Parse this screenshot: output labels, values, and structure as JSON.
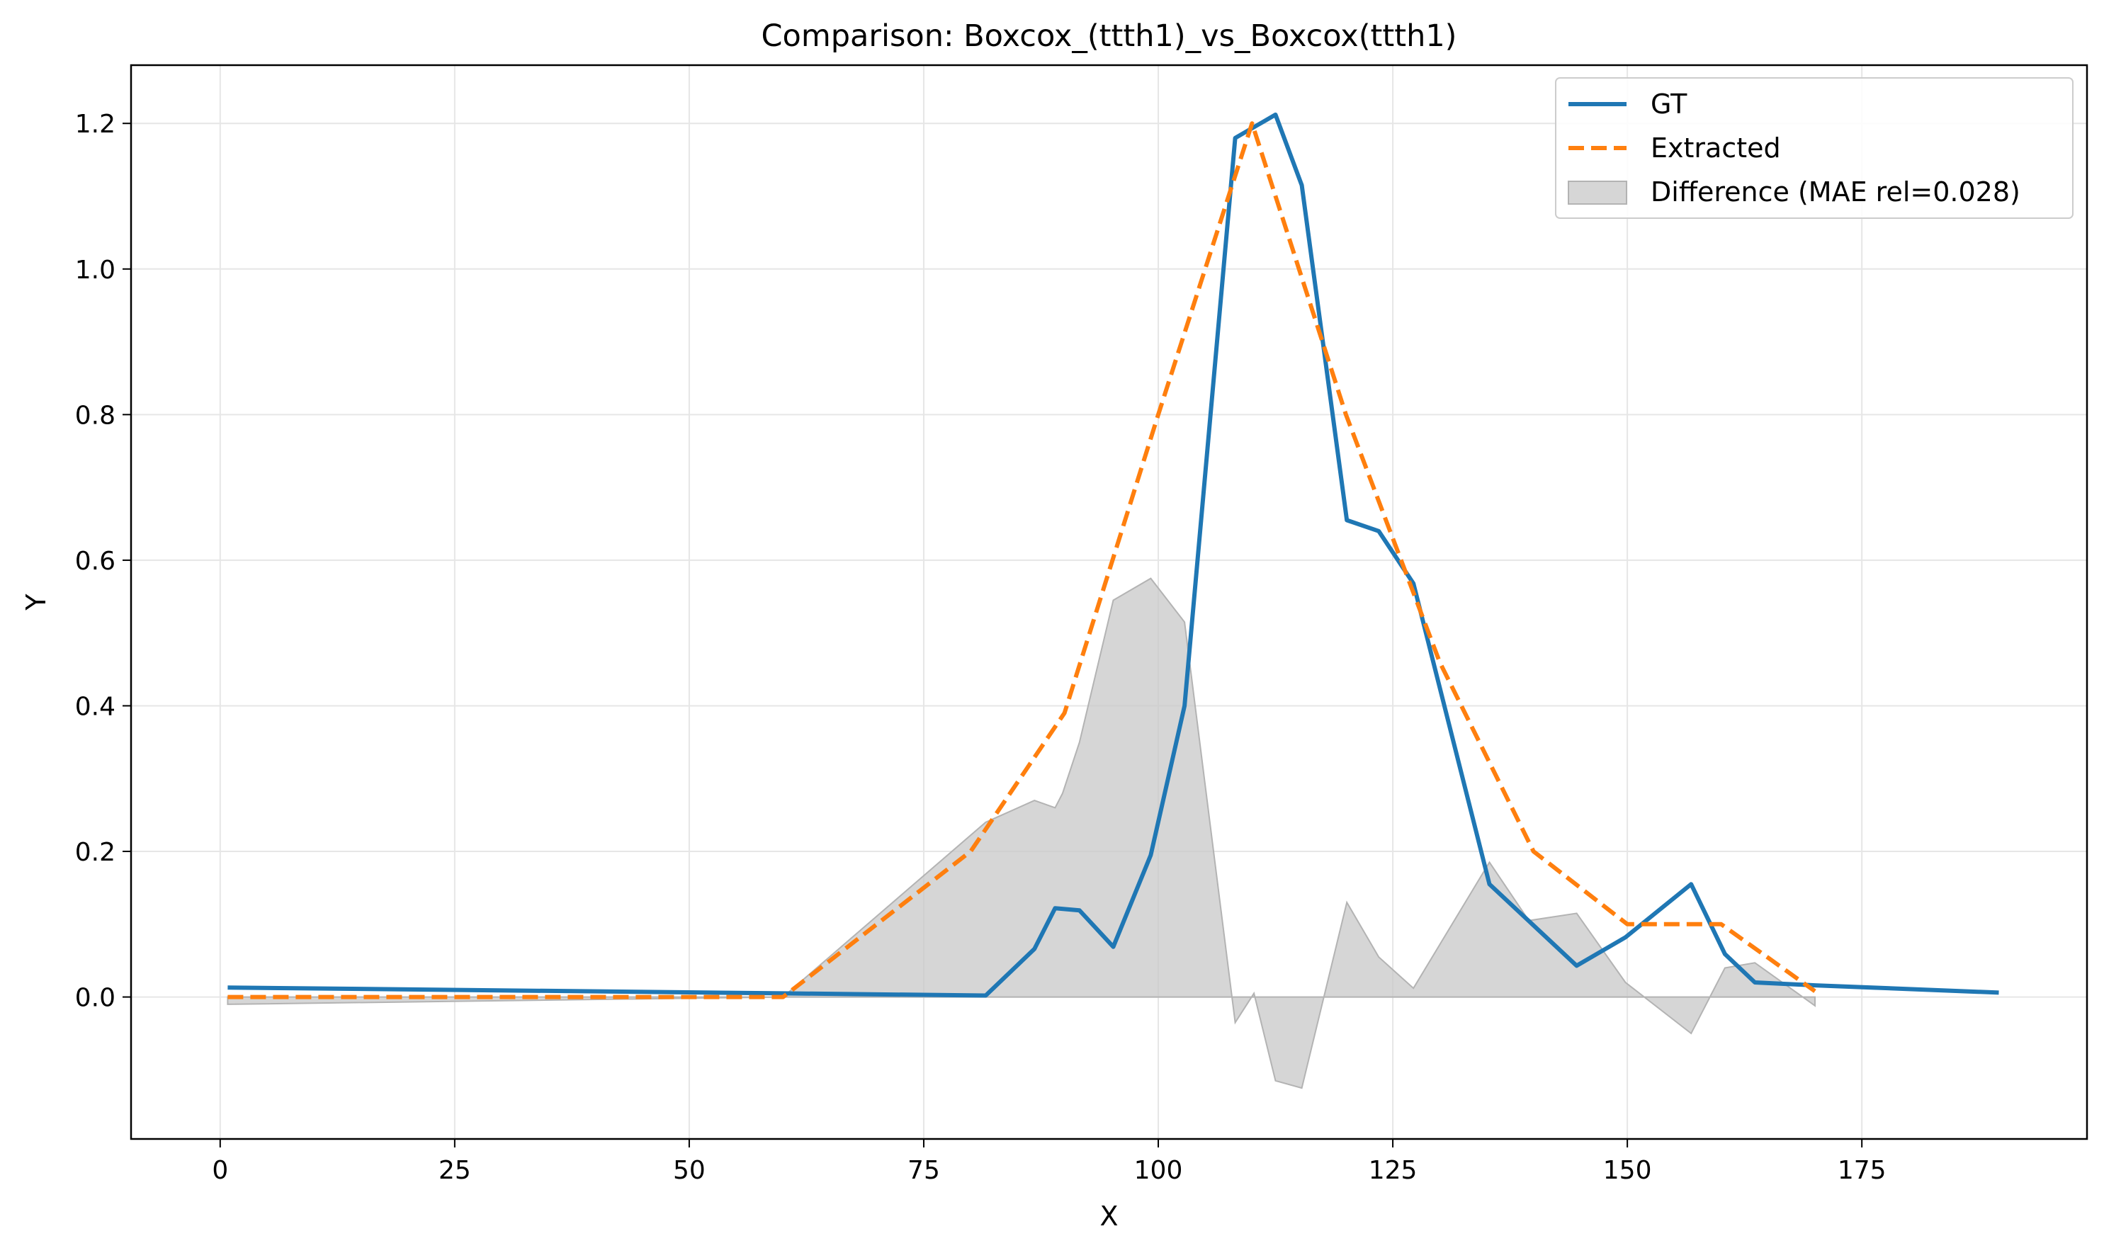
{
  "chart_data": {
    "type": "line",
    "title": "Comparison: Boxcox_(ttth1)_vs_Boxcox(ttth1)",
    "xlabel": "X",
    "ylabel": "Y",
    "xlim": [
      -9.5,
      199
    ],
    "ylim": [
      -0.195,
      1.28
    ],
    "xticks": [
      0,
      25,
      50,
      75,
      100,
      125,
      150,
      175
    ],
    "yticks": [
      0.0,
      0.2,
      0.4,
      0.6,
      0.8,
      1.0,
      1.2
    ],
    "ytick_labels": [
      "0.0",
      "0.2",
      "0.4",
      "0.6",
      "0.8",
      "1.0",
      "1.2"
    ],
    "grid": true,
    "legend_position": "top-right",
    "series": [
      {
        "name": "GT",
        "style": "solid",
        "color": "#1f77b4",
        "points": [
          [
            0.8,
            0.013
          ],
          [
            60,
            0.005
          ],
          [
            81.6,
            0.002
          ],
          [
            86.8,
            0.066
          ],
          [
            89,
            0.122
          ],
          [
            91.6,
            0.119
          ],
          [
            95.2,
            0.069
          ],
          [
            99.2,
            0.195
          ],
          [
            102.8,
            0.4
          ],
          [
            108.2,
            1.18
          ],
          [
            112.5,
            1.212
          ],
          [
            115.3,
            1.115
          ],
          [
            120.1,
            0.655
          ],
          [
            123.5,
            0.64
          ],
          [
            127.2,
            0.568
          ],
          [
            135.3,
            0.155
          ],
          [
            144.6,
            0.043
          ],
          [
            149.8,
            0.082
          ],
          [
            156.8,
            0.155
          ],
          [
            160.4,
            0.059
          ],
          [
            163.6,
            0.02
          ],
          [
            170,
            0.016
          ],
          [
            189.6,
            0.006
          ]
        ]
      },
      {
        "name": "Extracted",
        "style": "dashed",
        "color": "#ff7f0e",
        "points": [
          [
            0.8,
            0.0
          ],
          [
            60,
            0.0
          ],
          [
            80,
            0.2
          ],
          [
            90,
            0.39
          ],
          [
            100,
            0.8
          ],
          [
            110,
            1.2
          ],
          [
            120,
            0.8
          ],
          [
            130,
            0.46
          ],
          [
            140,
            0.2
          ],
          [
            150,
            0.1
          ],
          [
            160,
            0.1
          ],
          [
            170,
            0.008
          ]
        ]
      },
      {
        "name": "Difference (MAE rel=0.028)",
        "style": "fill",
        "color": "#c8c8c8",
        "points": [
          [
            0.8,
            -0.01
          ],
          [
            60,
            0.0
          ],
          [
            81.6,
            0.24
          ],
          [
            86.8,
            0.27
          ],
          [
            89,
            0.26
          ],
          [
            89.8,
            0.28
          ],
          [
            91.6,
            0.35
          ],
          [
            95.2,
            0.545
          ],
          [
            99.2,
            0.575
          ],
          [
            102.8,
            0.515
          ],
          [
            108.2,
            -0.035
          ],
          [
            110.2,
            0.005
          ],
          [
            112.5,
            -0.115
          ],
          [
            115.3,
            -0.125
          ],
          [
            120.1,
            0.13
          ],
          [
            123.5,
            0.055
          ],
          [
            127.2,
            0.012
          ],
          [
            135.3,
            0.185
          ],
          [
            139.5,
            0.105
          ],
          [
            144.6,
            0.115
          ],
          [
            149.8,
            0.02
          ],
          [
            156.8,
            -0.05
          ],
          [
            160.4,
            0.04
          ],
          [
            163.6,
            0.047
          ],
          [
            170,
            -0.012
          ]
        ]
      }
    ]
  }
}
